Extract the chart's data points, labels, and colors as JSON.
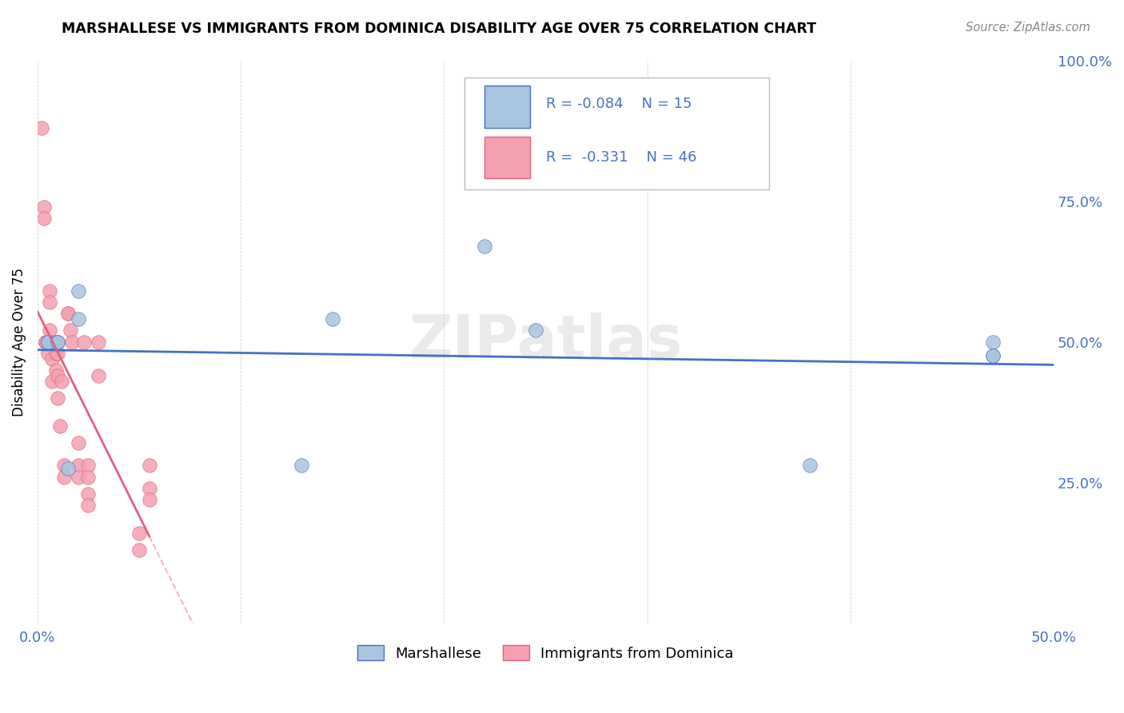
{
  "title": "MARSHALLESE VS IMMIGRANTS FROM DOMINICA DISABILITY AGE OVER 75 CORRELATION CHART",
  "source": "Source: ZipAtlas.com",
  "ylabel": "Disability Age Over 75",
  "xlim": [
    0.0,
    0.5
  ],
  "ylim": [
    0.0,
    1.0
  ],
  "yticks": [
    0.0,
    0.25,
    0.5,
    0.75,
    1.0
  ],
  "ytick_labels": [
    "",
    "25.0%",
    "50.0%",
    "75.0%",
    "100.0%"
  ],
  "xticks": [
    0.0,
    0.1,
    0.2,
    0.3,
    0.4,
    0.5
  ],
  "xtick_labels": [
    "0.0%",
    "",
    "",
    "",
    "",
    "50.0%"
  ],
  "blue_R": -0.084,
  "blue_N": 15,
  "pink_R": -0.331,
  "pink_N": 46,
  "legend_label_blue": "Marshallese",
  "legend_label_pink": "Immigrants from Dominica",
  "blue_color": "#a8c4e0",
  "pink_color": "#f4a0b0",
  "blue_line_color": "#4472c4",
  "pink_line_color": "#e06080",
  "watermark": "ZIPatlas",
  "blue_x": [
    0.005,
    0.005,
    0.01,
    0.01,
    0.015,
    0.02,
    0.02,
    0.13,
    0.145,
    0.22,
    0.245,
    0.38,
    0.47,
    0.47,
    0.47
  ],
  "blue_y": [
    0.5,
    0.5,
    0.5,
    0.5,
    0.275,
    0.59,
    0.54,
    0.28,
    0.54,
    0.67,
    0.52,
    0.28,
    0.5,
    0.475,
    0.475
  ],
  "pink_x": [
    0.002,
    0.003,
    0.003,
    0.004,
    0.004,
    0.005,
    0.005,
    0.005,
    0.005,
    0.006,
    0.006,
    0.006,
    0.006,
    0.007,
    0.007,
    0.008,
    0.008,
    0.009,
    0.009,
    0.01,
    0.01,
    0.01,
    0.01,
    0.011,
    0.012,
    0.013,
    0.013,
    0.015,
    0.015,
    0.016,
    0.017,
    0.02,
    0.02,
    0.02,
    0.023,
    0.025,
    0.025,
    0.025,
    0.025,
    0.03,
    0.03,
    0.05,
    0.05,
    0.055,
    0.055,
    0.055
  ],
  "pink_y": [
    0.88,
    0.74,
    0.72,
    0.5,
    0.5,
    0.5,
    0.5,
    0.5,
    0.48,
    0.59,
    0.57,
    0.52,
    0.5,
    0.47,
    0.43,
    0.5,
    0.5,
    0.48,
    0.45,
    0.5,
    0.48,
    0.44,
    0.4,
    0.35,
    0.43,
    0.28,
    0.26,
    0.55,
    0.55,
    0.52,
    0.5,
    0.32,
    0.28,
    0.26,
    0.5,
    0.28,
    0.26,
    0.23,
    0.21,
    0.5,
    0.44,
    0.16,
    0.13,
    0.28,
    0.24,
    0.22
  ]
}
